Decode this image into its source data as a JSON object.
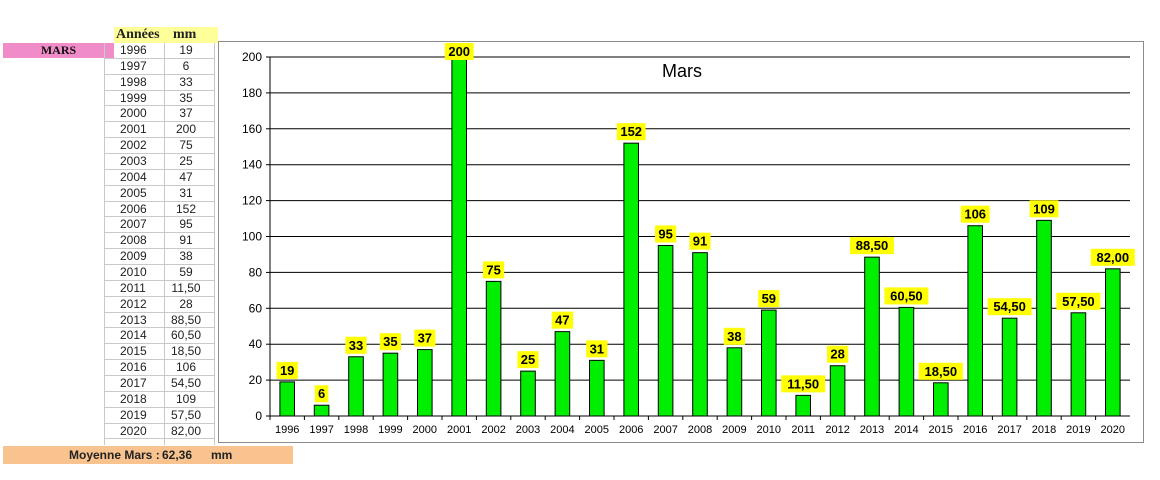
{
  "table": {
    "side_label": "MARS",
    "header_years": "Années",
    "header_mm": "mm",
    "rows": [
      {
        "year": "1996",
        "mm": "19"
      },
      {
        "year": "1997",
        "mm": "6"
      },
      {
        "year": "1998",
        "mm": "33"
      },
      {
        "year": "1999",
        "mm": "35"
      },
      {
        "year": "2000",
        "mm": "37"
      },
      {
        "year": "2001",
        "mm": "200"
      },
      {
        "year": "2002",
        "mm": "75"
      },
      {
        "year": "2003",
        "mm": "25"
      },
      {
        "year": "2004",
        "mm": "47"
      },
      {
        "year": "2005",
        "mm": "31"
      },
      {
        "year": "2006",
        "mm": "152"
      },
      {
        "year": "2007",
        "mm": "95"
      },
      {
        "year": "2008",
        "mm": "91"
      },
      {
        "year": "2009",
        "mm": "38"
      },
      {
        "year": "2010",
        "mm": "59"
      },
      {
        "year": "2011",
        "mm": "11,50"
      },
      {
        "year": "2012",
        "mm": "28"
      },
      {
        "year": "2013",
        "mm": "88,50"
      },
      {
        "year": "2014",
        "mm": "60,50"
      },
      {
        "year": "2015",
        "mm": "18,50"
      },
      {
        "year": "2016",
        "mm": "106"
      },
      {
        "year": "2017",
        "mm": "54,50"
      },
      {
        "year": "2018",
        "mm": "109"
      },
      {
        "year": "2019",
        "mm": "57,50"
      },
      {
        "year": "2020",
        "mm": "82,00"
      }
    ],
    "average_label": "Moyenne Mars :",
    "average_value": "62,36",
    "average_unit": "mm"
  },
  "colors": {
    "bar_fill": "#00ee00",
    "bar_stroke": "#000000",
    "label_bg": "#ffff00",
    "side_label_bg": "#f08cc8",
    "header_bg": "#ffff99",
    "average_bg": "#f9c38f"
  },
  "chart_data": {
    "type": "bar",
    "title": "Mars",
    "xlabel": "",
    "ylabel": "",
    "ylim": [
      0,
      200
    ],
    "yticks": [
      0,
      20,
      40,
      60,
      80,
      100,
      120,
      140,
      160,
      180,
      200
    ],
    "grid": true,
    "categories": [
      "1996",
      "1997",
      "1998",
      "1999",
      "2000",
      "2001",
      "2002",
      "2003",
      "2004",
      "2005",
      "2006",
      "2007",
      "2008",
      "2009",
      "2010",
      "2011",
      "2012",
      "2013",
      "2014",
      "2015",
      "2016",
      "2017",
      "2018",
      "2019",
      "2020"
    ],
    "values": [
      19,
      6,
      33,
      35,
      37,
      200,
      75,
      25,
      47,
      31,
      152,
      95,
      91,
      38,
      59,
      11.5,
      28,
      88.5,
      60.5,
      18.5,
      106,
      54.5,
      109,
      57.5,
      82
    ],
    "data_labels": [
      "19",
      "6",
      "33",
      "35",
      "37",
      "200",
      "75",
      "25",
      "47",
      "31",
      "152",
      "95",
      "91",
      "38",
      "59",
      "11,50",
      "28",
      "88,50",
      "60,50",
      "18,50",
      "106",
      "54,50",
      "109",
      "57,50",
      "82,00"
    ]
  }
}
